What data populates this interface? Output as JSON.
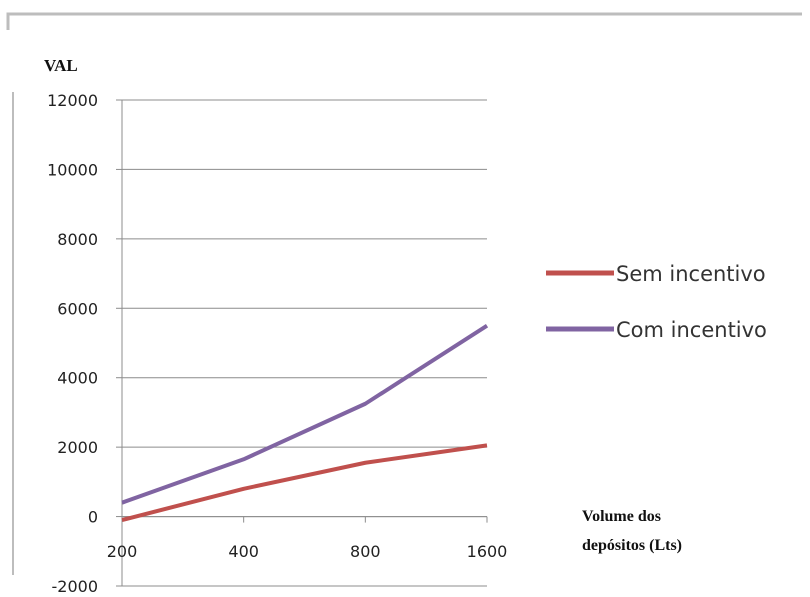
{
  "chart_data": {
    "type": "line",
    "title": "",
    "ylabel": "VAL",
    "xlabel_lines": [
      "Volume dos",
      "depósitos (Lts)"
    ],
    "categories": [
      "200",
      "400",
      "800",
      "1600"
    ],
    "ylim": [
      -2000,
      12000
    ],
    "yticks": [
      12000,
      10000,
      8000,
      6000,
      4000,
      2000,
      0,
      -2000
    ],
    "grid": true,
    "legend_position": "right",
    "series": [
      {
        "name": "Sem incentivo",
        "color": "#c0504d",
        "values": [
          -100,
          800,
          1550,
          2050
        ]
      },
      {
        "name": "Com incentivo",
        "color": "#8064a2",
        "values": [
          400,
          1650,
          3250,
          5500
        ]
      }
    ]
  }
}
